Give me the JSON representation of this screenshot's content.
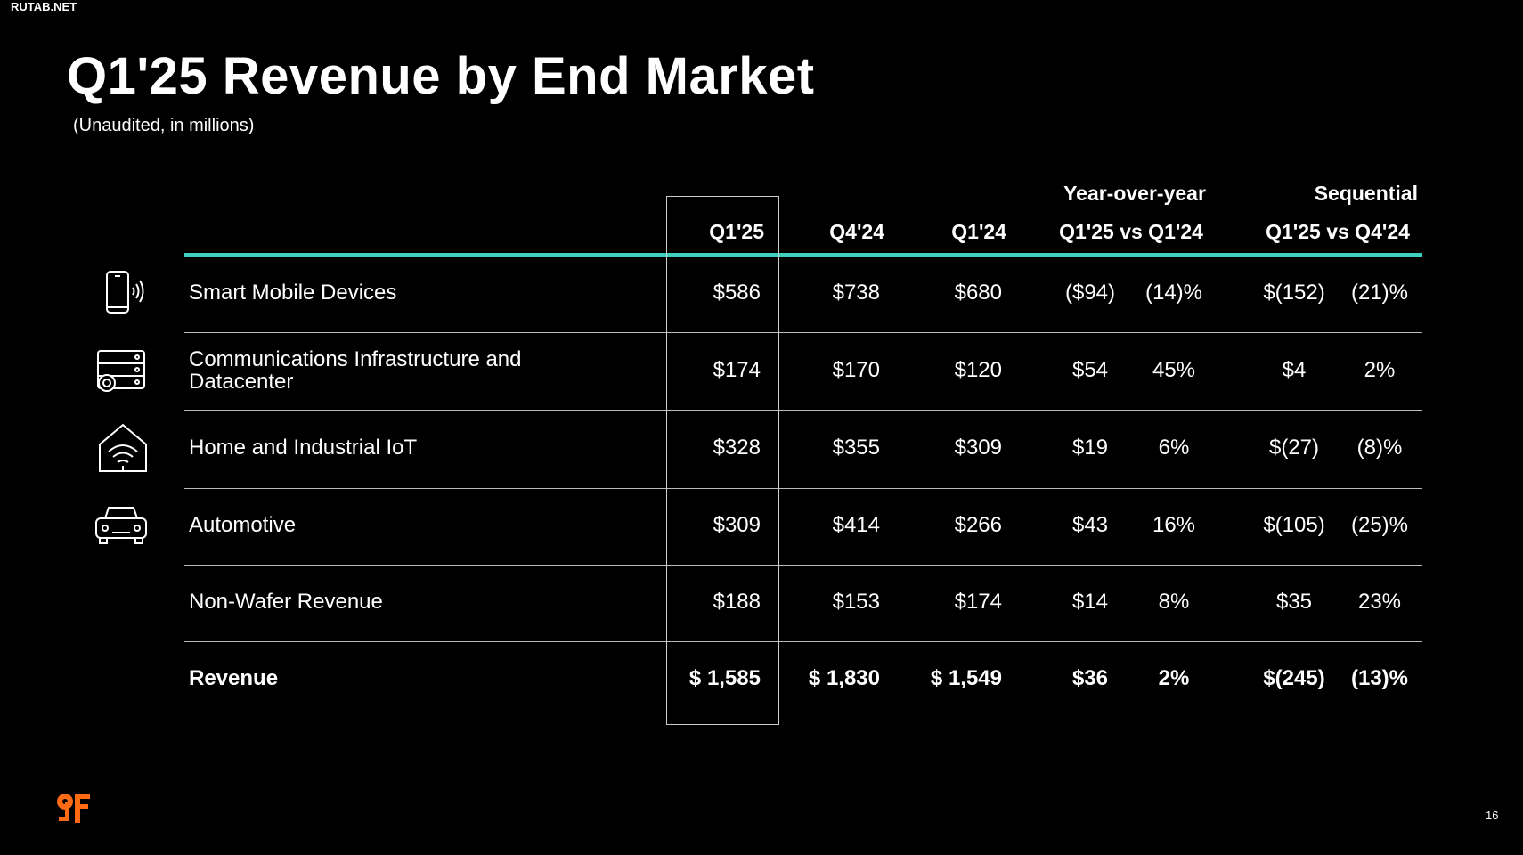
{
  "watermark": "RUTAB.NET",
  "title": "Q1'25 Revenue by End Market",
  "subtitle": "(Unaudited, in millions)",
  "headers": {
    "group_yoy": "Year-over-year",
    "group_seq": "Sequential",
    "q125": "Q1'25",
    "q424": "Q4'24",
    "q124": "Q1'24",
    "yoy": "Q1'25 vs Q1'24",
    "seq": "Q1'25 vs Q4'24"
  },
  "rows": [
    {
      "label": "Smart Mobile Devices",
      "icon": "smartphone-icon",
      "q125": "$586",
      "q424": "$738",
      "q124": "$680",
      "yoy_d": "($94)",
      "yoy_p": "(14)%",
      "seq_d": "$(152)",
      "seq_p": "(21)%"
    },
    {
      "label": "Communications Infrastructure and",
      "label2": "Datacenter",
      "icon": "server-gear-icon",
      "q125": "$174",
      "q424": "$170",
      "q124": "$120",
      "yoy_d": "$54",
      "yoy_p": "45%",
      "seq_d": "$4",
      "seq_p": "2%"
    },
    {
      "label": "Home and Industrial IoT",
      "icon": "home-wifi-icon",
      "q125": "$328",
      "q424": "$355",
      "q124": "$309",
      "yoy_d": "$19",
      "yoy_p": "6%",
      "seq_d": "$(27)",
      "seq_p": "(8)%"
    },
    {
      "label": "Automotive",
      "icon": "car-icon",
      "q125": "$309",
      "q424": "$414",
      "q124": "$266",
      "yoy_d": "$43",
      "yoy_p": "16%",
      "seq_d": "$(105)",
      "seq_p": "(25)%"
    },
    {
      "label": "Non-Wafer Revenue",
      "q125": "$188",
      "q424": "$153",
      "q124": "$174",
      "yoy_d": "$14",
      "yoy_p": "8%",
      "seq_d": "$35",
      "seq_p": "23%"
    },
    {
      "label": "Revenue",
      "q125": "$ 1,585",
      "q424": "$ 1,830",
      "q124": "$ 1,549",
      "yoy_d": "$36",
      "yoy_p": "2%",
      "seq_d": "$(245)",
      "seq_p": "(13)%"
    }
  ],
  "page_number": "16",
  "colors": {
    "accent": "#3fd0c0",
    "logo": "#ff6a13"
  }
}
